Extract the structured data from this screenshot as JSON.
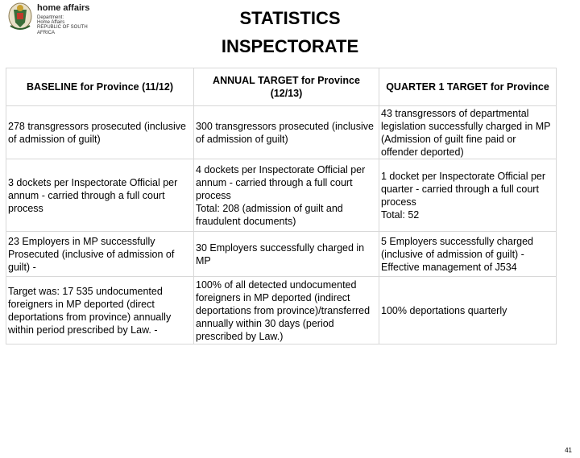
{
  "logo": {
    "brand": "home affairs",
    "sub_lines": [
      "Department:",
      "Home Affairs",
      "REPUBLIC OF SOUTH AFRICA"
    ]
  },
  "title": {
    "line1": "STATISTICS",
    "line2": "INSPECTORATE"
  },
  "table": {
    "headers": [
      "BASELINE for Province (11/12)",
      "ANNUAL TARGET for Province (12/13)",
      "QUARTER 1 TARGET for Province"
    ],
    "rows": [
      {
        "cells": [
          "278 transgressors prosecuted (inclusive of admission of guilt)",
          " 300 transgressors prosecuted (inclusive of admission of guilt)",
          "43 transgressors of departmental legislation successfully charged in MP (Admission of guilt fine paid or offender deported)"
        ]
      },
      {
        "cells": [
          "3 dockets per Inspectorate Official per annum - carried through a full court process",
          "4 dockets per Inspectorate Official per annum - carried through a full court process\nTotal: 208 (admission of guilt and fraudulent documents)",
          "1 docket per Inspectorate Official per quarter - carried through a full court process\nTotal: 52"
        ]
      },
      {
        "cells": [
          "23 Employers in MP successfully Prosecuted (inclusive of admission of guilt) -",
          "30 Employers successfully charged in MP",
          "5 Employers successfully charged (inclusive of admission of guilt) - Effective management of J534"
        ]
      },
      {
        "cells": [
          "Target was: 17 535 undocumented foreigners in MP deported (direct deportations from province) annually within period prescribed by Law. -",
          "100% of all detected undocumented foreigners in MP deported (indirect deportations from province)/transferred annually within 30 days (period prescribed by Law.)",
          "100% deportations quarterly"
        ]
      }
    ]
  },
  "page_number": "41"
}
